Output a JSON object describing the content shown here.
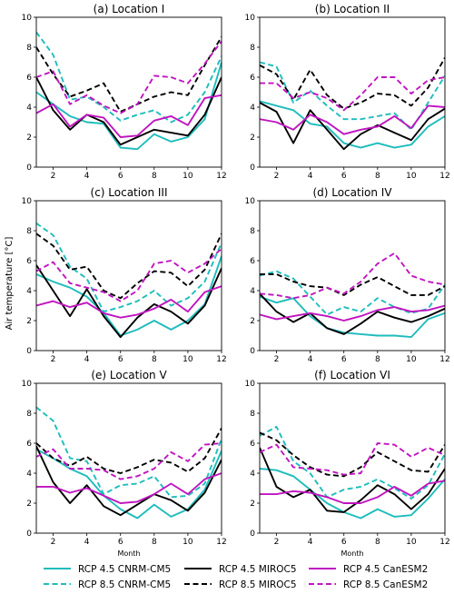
{
  "figure": {
    "ylabel": "Air temperature [°C]",
    "xlabel": "Month"
  },
  "colors": {
    "CNRM-CM5": "#1ebcbc",
    "MIROC5": "#000000",
    "CanESM2": "#c014c0"
  },
  "legend": {
    "items": [
      {
        "label": "RCP 4.5 CNRM-CM5",
        "series": "rcp45_cnrm"
      },
      {
        "label": "RCP 4.5 MIROC5",
        "series": "rcp45_miroc"
      },
      {
        "label": "RCP 4.5 CanESM2",
        "series": "rcp45_canesm"
      },
      {
        "label": "RCP 8.5 CNRM-CM5",
        "series": "rcp85_cnrm"
      },
      {
        "label": "RCP 8.5 MIROC5",
        "series": "rcp85_miroc"
      },
      {
        "label": "RCP 8.5 CanESM2",
        "series": "rcp85_canesm"
      }
    ]
  },
  "chart_data": [
    {
      "type": "line",
      "title": "(a) Location I",
      "x": [
        1,
        2,
        3,
        4,
        5,
        6,
        7,
        8,
        9,
        10,
        11,
        12
      ],
      "xticks": [
        2,
        4,
        6,
        8,
        10,
        12
      ],
      "ylim": [
        0,
        10
      ],
      "yticks": [
        0,
        2,
        4,
        6,
        8,
        10
      ],
      "series": [
        {
          "name": "RCP 4.5 CNRM-CM5",
          "values": [
            5.0,
            4.2,
            3.4,
            3.0,
            2.9,
            1.3,
            1.2,
            2.2,
            1.7,
            2.0,
            3.2,
            7.0
          ]
        },
        {
          "name": "RCP 8.5 CNRM-CM5",
          "values": [
            9.0,
            7.5,
            4.5,
            4.7,
            4.0,
            3.1,
            3.5,
            3.8,
            3.0,
            3.5,
            5.0,
            7.4
          ]
        },
        {
          "name": "RCP 4.5 MIROC5",
          "values": [
            6.0,
            3.8,
            2.5,
            3.5,
            3.0,
            1.5,
            2.0,
            2.5,
            2.3,
            2.1,
            3.5,
            6.0
          ]
        },
        {
          "name": "RCP 8.5 MIROC5",
          "values": [
            8.0,
            6.2,
            4.7,
            5.1,
            5.6,
            3.7,
            4.2,
            4.7,
            5.0,
            4.8,
            6.8,
            8.7
          ]
        },
        {
          "name": "RCP 4.5 CanESM2",
          "values": [
            3.6,
            4.2,
            2.7,
            3.5,
            3.3,
            2.0,
            2.1,
            3.1,
            3.4,
            2.8,
            4.6,
            4.8
          ]
        },
        {
          "name": "RCP 8.5 CanESM2",
          "values": [
            6.0,
            6.4,
            4.2,
            4.8,
            4.1,
            3.6,
            4.2,
            6.1,
            6.0,
            5.6,
            6.9,
            8.4
          ]
        }
      ]
    },
    {
      "type": "line",
      "title": "(b) Location II",
      "x": [
        1,
        2,
        3,
        4,
        5,
        6,
        7,
        8,
        9,
        10,
        11,
        12
      ],
      "xticks": [
        2,
        4,
        6,
        8,
        10,
        12
      ],
      "ylim": [
        0,
        10
      ],
      "yticks": [
        0,
        2,
        4,
        6,
        8,
        10
      ],
      "series": [
        {
          "name": "RCP 4.5 CNRM-CM5",
          "values": [
            4.4,
            4.1,
            3.8,
            2.9,
            2.7,
            1.6,
            1.3,
            1.6,
            1.3,
            1.5,
            2.7,
            3.4
          ]
        },
        {
          "name": "RCP 8.5 CNRM-CM5",
          "values": [
            7.0,
            6.7,
            4.3,
            5.1,
            4.1,
            3.2,
            3.2,
            3.4,
            3.6,
            2.5,
            4.3,
            6.1
          ]
        },
        {
          "name": "RCP 4.5 MIROC5",
          "values": [
            4.3,
            3.7,
            1.6,
            3.8,
            2.5,
            1.2,
            2.2,
            2.8,
            2.3,
            1.8,
            3.2,
            3.9
          ]
        },
        {
          "name": "RCP 8.5 MIROC5",
          "values": [
            6.8,
            6.2,
            4.5,
            6.5,
            4.8,
            3.9,
            4.3,
            4.9,
            4.8,
            4.1,
            5.3,
            7.3
          ]
        },
        {
          "name": "RCP 4.5 CanESM2",
          "values": [
            3.2,
            3.0,
            2.5,
            3.5,
            3.0,
            2.2,
            2.5,
            2.7,
            3.4,
            2.6,
            4.1,
            4.0
          ]
        },
        {
          "name": "RCP 8.5 CanESM2",
          "values": [
            5.6,
            5.6,
            4.6,
            5.0,
            4.6,
            3.8,
            4.8,
            6.0,
            6.0,
            4.9,
            5.8,
            6.0
          ]
        }
      ]
    },
    {
      "type": "line",
      "title": "(c) Location III",
      "x": [
        1,
        2,
        3,
        4,
        5,
        6,
        7,
        8,
        9,
        10,
        11,
        12
      ],
      "xticks": [
        2,
        4,
        6,
        8,
        10,
        12
      ],
      "ylim": [
        0,
        10
      ],
      "yticks": [
        0,
        2,
        4,
        6,
        8,
        10
      ],
      "series": [
        {
          "name": "RCP 4.5 CNRM-CM5",
          "values": [
            5.1,
            4.6,
            4.2,
            3.6,
            2.5,
            1.0,
            1.4,
            2.0,
            1.4,
            2.0,
            3.1,
            6.3
          ]
        },
        {
          "name": "RCP 8.5 CNRM-CM5",
          "values": [
            8.5,
            7.7,
            5.6,
            4.8,
            2.6,
            2.9,
            3.3,
            4.0,
            3.0,
            3.5,
            4.6,
            7.2
          ]
        },
        {
          "name": "RCP 4.5 MIROC5",
          "values": [
            5.7,
            4.0,
            2.3,
            4.1,
            2.3,
            0.9,
            2.2,
            3.1,
            2.6,
            1.8,
            3.0,
            5.5
          ]
        },
        {
          "name": "RCP 8.5 MIROC5",
          "values": [
            7.8,
            7.0,
            5.4,
            5.6,
            4.0,
            3.5,
            4.5,
            5.3,
            5.2,
            4.3,
            5.4,
            7.8
          ]
        },
        {
          "name": "RCP 4.5 CanESM2",
          "values": [
            3.0,
            3.3,
            2.9,
            3.2,
            2.5,
            2.2,
            2.4,
            2.8,
            3.4,
            2.6,
            3.9,
            4.3
          ]
        },
        {
          "name": "RCP 8.5 CanESM2",
          "values": [
            5.3,
            5.9,
            4.5,
            4.2,
            3.9,
            3.3,
            4.0,
            5.8,
            6.0,
            5.2,
            5.8,
            6.8
          ]
        }
      ]
    },
    {
      "type": "line",
      "title": "(d) Location IV",
      "x": [
        1,
        2,
        3,
        4,
        5,
        6,
        7,
        8,
        9,
        10,
        11,
        12
      ],
      "xticks": [
        2,
        4,
        6,
        8,
        10,
        12
      ],
      "ylim": [
        0,
        10
      ],
      "yticks": [
        0,
        2,
        4,
        6,
        8,
        10
      ],
      "series": [
        {
          "name": "RCP 4.5 CNRM-CM5",
          "values": [
            3.6,
            3.2,
            3.5,
            2.3,
            1.5,
            1.2,
            1.1,
            1.0,
            1.0,
            0.9,
            2.1,
            2.5
          ]
        },
        {
          "name": "RCP 8.5 CNRM-CM5",
          "values": [
            5.0,
            5.3,
            4.8,
            3.6,
            2.4,
            2.9,
            2.6,
            3.5,
            2.9,
            2.5,
            2.8,
            4.4
          ]
        },
        {
          "name": "RCP 4.5 MIROC5",
          "values": [
            3.8,
            2.6,
            1.9,
            2.5,
            1.5,
            1.1,
            1.8,
            2.6,
            2.2,
            1.9,
            2.3,
            2.8
          ]
        },
        {
          "name": "RCP 8.5 MIROC5",
          "values": [
            5.1,
            5.1,
            4.6,
            4.3,
            4.2,
            3.7,
            4.4,
            4.9,
            4.3,
            3.7,
            3.7,
            4.3
          ]
        },
        {
          "name": "RCP 4.5 CanESM2",
          "values": [
            2.4,
            2.1,
            2.3,
            2.5,
            2.3,
            2.0,
            2.3,
            2.7,
            2.9,
            2.6,
            2.7,
            3.0
          ]
        },
        {
          "name": "RCP 8.5 CanESM2",
          "values": [
            3.8,
            3.7,
            3.5,
            3.7,
            4.2,
            3.8,
            4.6,
            5.8,
            6.5,
            5.0,
            4.6,
            4.4
          ]
        }
      ]
    },
    {
      "type": "line",
      "title": "(e) Location V",
      "x": [
        1,
        2,
        3,
        4,
        5,
        6,
        7,
        8,
        9,
        10,
        11,
        12
      ],
      "xticks": [
        2,
        4,
        6,
        8,
        10,
        12
      ],
      "ylim": [
        0,
        10
      ],
      "yticks": [
        0,
        2,
        4,
        6,
        8,
        10
      ],
      "series": [
        {
          "name": "RCP 4.5 CNRM-CM5",
          "values": [
            5.6,
            5.0,
            4.3,
            3.8,
            2.5,
            1.6,
            1.0,
            1.9,
            1.1,
            1.6,
            2.9,
            5.5
          ]
        },
        {
          "name": "RCP 8.5 CNRM-CM5",
          "values": [
            8.4,
            7.5,
            5.0,
            4.8,
            2.6,
            3.2,
            3.3,
            3.8,
            2.4,
            2.5,
            3.3,
            6.3
          ]
        },
        {
          "name": "RCP 4.5 MIROC5",
          "values": [
            5.8,
            3.4,
            2.0,
            3.2,
            1.8,
            1.2,
            1.9,
            2.6,
            2.2,
            1.5,
            2.7,
            4.9
          ]
        },
        {
          "name": "RCP 8.5 MIROC5",
          "values": [
            6.0,
            5.0,
            4.5,
            5.1,
            4.3,
            4.0,
            4.4,
            4.9,
            4.7,
            4.1,
            5.0,
            7.0
          ]
        },
        {
          "name": "RCP 4.5 CanESM2",
          "values": [
            3.1,
            3.1,
            2.7,
            3.0,
            2.5,
            2.0,
            2.1,
            2.6,
            3.3,
            2.6,
            3.6,
            4.0
          ]
        },
        {
          "name": "RCP 8.5 CanESM2",
          "values": [
            5.1,
            5.6,
            4.3,
            4.3,
            4.2,
            3.6,
            3.8,
            4.3,
            5.4,
            4.8,
            5.9,
            6.0
          ]
        }
      ]
    },
    {
      "type": "line",
      "title": "(f) Location VI",
      "x": [
        1,
        2,
        3,
        4,
        5,
        6,
        7,
        8,
        9,
        10,
        11,
        12
      ],
      "xticks": [
        2,
        4,
        6,
        8,
        10,
        12
      ],
      "ylim": [
        0,
        10
      ],
      "yticks": [
        0,
        2,
        4,
        6,
        8,
        10
      ],
      "series": [
        {
          "name": "RCP 4.5 CNRM-CM5",
          "values": [
            4.3,
            4.2,
            3.8,
            2.9,
            2.0,
            1.4,
            1.0,
            1.6,
            1.1,
            1.2,
            2.3,
            3.6
          ]
        },
        {
          "name": "RCP 8.5 CNRM-CM5",
          "values": [
            6.5,
            7.1,
            4.8,
            4.0,
            2.4,
            2.9,
            3.1,
            3.6,
            3.0,
            2.3,
            3.2,
            5.3
          ]
        },
        {
          "name": "RCP 4.5 MIROC5",
          "values": [
            5.7,
            3.1,
            2.4,
            2.9,
            1.5,
            1.4,
            2.2,
            3.2,
            2.6,
            1.6,
            2.6,
            4.3
          ]
        },
        {
          "name": "RCP 8.5 MIROC5",
          "values": [
            6.7,
            6.2,
            5.2,
            4.4,
            3.9,
            3.8,
            4.4,
            5.4,
            4.8,
            4.2,
            4.1,
            5.9
          ]
        },
        {
          "name": "RCP 4.5 CanESM2",
          "values": [
            2.6,
            2.6,
            2.8,
            2.7,
            2.4,
            2.0,
            2.0,
            2.4,
            3.1,
            2.5,
            3.3,
            3.5
          ]
        },
        {
          "name": "RCP 8.5 CanESM2",
          "values": [
            5.4,
            5.9,
            4.4,
            4.3,
            4.2,
            3.9,
            4.0,
            6.0,
            5.9,
            5.1,
            5.7,
            5.2
          ]
        }
      ]
    }
  ]
}
